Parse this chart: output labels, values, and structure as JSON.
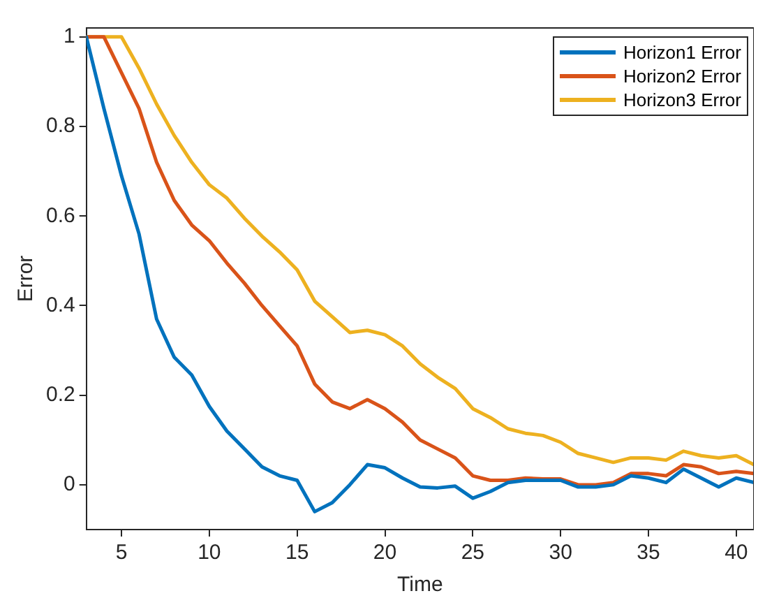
{
  "chart_data": {
    "type": "line",
    "xlabel": "Time",
    "ylabel": "Error",
    "x": [
      3,
      4,
      5,
      6,
      7,
      8,
      9,
      10,
      11,
      12,
      13,
      14,
      15,
      16,
      17,
      18,
      19,
      20,
      21,
      22,
      23,
      24,
      25,
      26,
      27,
      28,
      29,
      30,
      31,
      32,
      33,
      34,
      35,
      36,
      37,
      38,
      39,
      40,
      41
    ],
    "series": [
      {
        "name": "Horizon1 Error",
        "color": "#0072bd",
        "values": [
          1,
          0.84,
          0.69,
          0.56,
          0.37,
          0.285,
          0.245,
          0.175,
          0.12,
          0.08,
          0.04,
          0.02,
          0.01,
          -0.06,
          -0.04,
          0,
          0.045,
          0.038,
          0.015,
          -0.005,
          -0.007,
          -0.003,
          -0.03,
          -0.015,
          0.005,
          0.01,
          0.01,
          0.01,
          -0.005,
          -0.005,
          0,
          0.02,
          0.015,
          0.005,
          0.035,
          0.015,
          -0.005,
          0.015,
          0.005
        ]
      },
      {
        "name": "Horizon2 Error",
        "color": "#d95319",
        "values": [
          1,
          1,
          0.92,
          0.84,
          0.72,
          0.635,
          0.58,
          0.545,
          0.495,
          0.45,
          0.4,
          0.355,
          0.31,
          0.225,
          0.185,
          0.17,
          0.19,
          0.17,
          0.14,
          0.1,
          0.08,
          0.06,
          0.02,
          0.01,
          0.01,
          0.015,
          0.013,
          0.013,
          0,
          0,
          0.005,
          0.025,
          0.025,
          0.02,
          0.045,
          0.04,
          0.025,
          0.03,
          0.025
        ]
      },
      {
        "name": "Horizon3 Error",
        "color": "#edb120",
        "values": [
          1,
          1,
          1,
          0.93,
          0.85,
          0.78,
          0.72,
          0.67,
          0.64,
          0.595,
          0.555,
          0.52,
          0.48,
          0.41,
          0.375,
          0.34,
          0.345,
          0.335,
          0.31,
          0.27,
          0.24,
          0.215,
          0.17,
          0.15,
          0.125,
          0.115,
          0.11,
          0.095,
          0.07,
          0.06,
          0.05,
          0.06,
          0.06,
          0.055,
          0.075,
          0.065,
          0.06,
          0.065,
          0.045
        ]
      }
    ],
    "xlim": [
      3,
      41
    ],
    "xticks": [
      5,
      10,
      15,
      20,
      25,
      30,
      35,
      40
    ],
    "ylim": [
      -0.1,
      1.02
    ],
    "yticks": [
      0,
      0.2,
      0.4,
      0.6,
      0.8,
      1
    ],
    "grid": false,
    "legend": "top right",
    "marker": "none",
    "line_style": "solid"
  }
}
